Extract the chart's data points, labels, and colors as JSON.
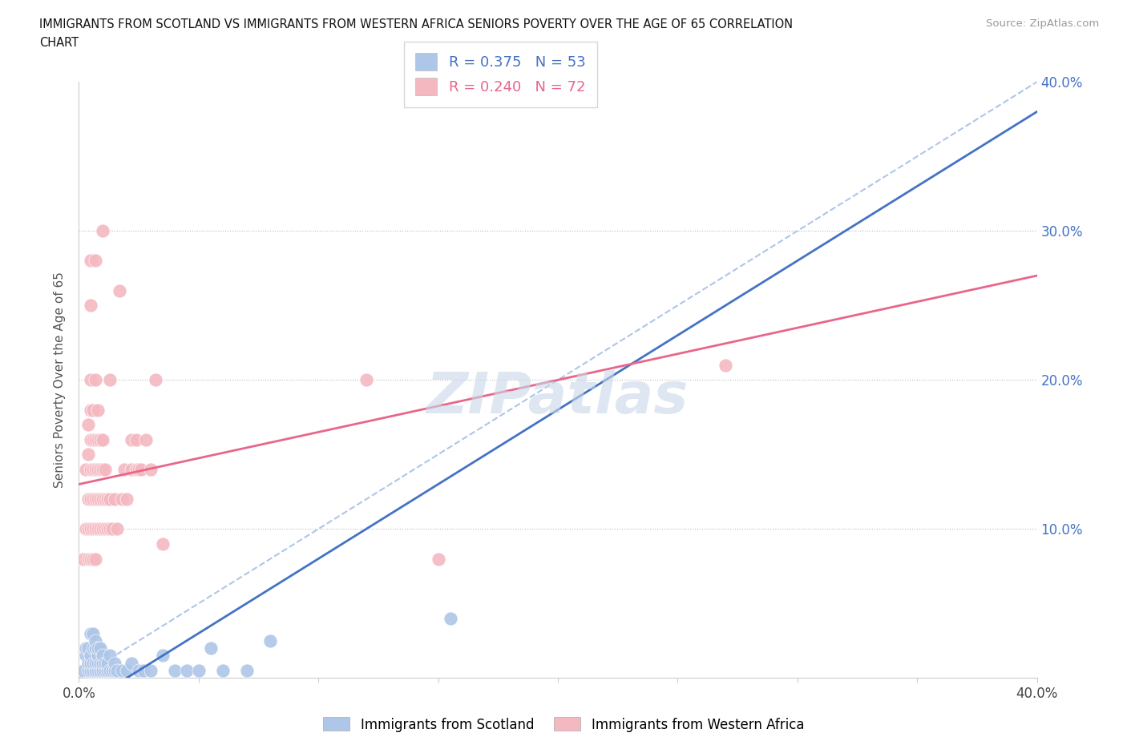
{
  "title_line1": "IMMIGRANTS FROM SCOTLAND VS IMMIGRANTS FROM WESTERN AFRICA SENIORS POVERTY OVER THE AGE OF 65 CORRELATION",
  "title_line2": "CHART",
  "source": "Source: ZipAtlas.com",
  "ylabel": "Seniors Poverty Over the Age of 65",
  "xlim": [
    0.0,
    0.4
  ],
  "ylim": [
    0.0,
    0.4
  ],
  "scotland_R": 0.375,
  "scotland_N": 53,
  "western_africa_R": 0.24,
  "western_africa_N": 72,
  "scotland_color": "#aec6e8",
  "western_africa_color": "#f4b8c1",
  "scotland_line_color": "#4472c4",
  "western_africa_line_color": "#e8668a",
  "dashed_line_color": "#aec6e8",
  "watermark": "ZIPatlas",
  "watermark_color": "#c8d8e8",
  "scotland_points": [
    [
      0.002,
      0.005
    ],
    [
      0.003,
      0.015
    ],
    [
      0.003,
      0.02
    ],
    [
      0.004,
      0.005
    ],
    [
      0.004,
      0.01
    ],
    [
      0.004,
      0.02
    ],
    [
      0.005,
      0.005
    ],
    [
      0.005,
      0.01
    ],
    [
      0.005,
      0.015
    ],
    [
      0.005,
      0.03
    ],
    [
      0.006,
      0.005
    ],
    [
      0.006,
      0.01
    ],
    [
      0.006,
      0.02
    ],
    [
      0.006,
      0.03
    ],
    [
      0.007,
      0.005
    ],
    [
      0.007,
      0.01
    ],
    [
      0.007,
      0.02
    ],
    [
      0.007,
      0.025
    ],
    [
      0.008,
      0.005
    ],
    [
      0.008,
      0.01
    ],
    [
      0.008,
      0.015
    ],
    [
      0.008,
      0.02
    ],
    [
      0.009,
      0.005
    ],
    [
      0.009,
      0.01
    ],
    [
      0.009,
      0.02
    ],
    [
      0.01,
      0.005
    ],
    [
      0.01,
      0.01
    ],
    [
      0.01,
      0.015
    ],
    [
      0.011,
      0.005
    ],
    [
      0.011,
      0.01
    ],
    [
      0.012,
      0.005
    ],
    [
      0.012,
      0.01
    ],
    [
      0.013,
      0.005
    ],
    [
      0.013,
      0.015
    ],
    [
      0.014,
      0.005
    ],
    [
      0.015,
      0.005
    ],
    [
      0.015,
      0.01
    ],
    [
      0.016,
      0.005
    ],
    [
      0.018,
      0.005
    ],
    [
      0.02,
      0.005
    ],
    [
      0.022,
      0.01
    ],
    [
      0.025,
      0.005
    ],
    [
      0.027,
      0.005
    ],
    [
      0.03,
      0.005
    ],
    [
      0.035,
      0.015
    ],
    [
      0.04,
      0.005
    ],
    [
      0.045,
      0.005
    ],
    [
      0.05,
      0.005
    ],
    [
      0.055,
      0.02
    ],
    [
      0.06,
      0.005
    ],
    [
      0.07,
      0.005
    ],
    [
      0.08,
      0.025
    ],
    [
      0.155,
      0.04
    ]
  ],
  "western_africa_points": [
    [
      0.002,
      0.08
    ],
    [
      0.003,
      0.1
    ],
    [
      0.003,
      0.14
    ],
    [
      0.004,
      0.08
    ],
    [
      0.004,
      0.1
    ],
    [
      0.004,
      0.12
    ],
    [
      0.004,
      0.15
    ],
    [
      0.004,
      0.17
    ],
    [
      0.005,
      0.08
    ],
    [
      0.005,
      0.1
    ],
    [
      0.005,
      0.12
    ],
    [
      0.005,
      0.14
    ],
    [
      0.005,
      0.16
    ],
    [
      0.005,
      0.18
    ],
    [
      0.005,
      0.2
    ],
    [
      0.005,
      0.25
    ],
    [
      0.005,
      0.28
    ],
    [
      0.006,
      0.08
    ],
    [
      0.006,
      0.1
    ],
    [
      0.006,
      0.12
    ],
    [
      0.006,
      0.14
    ],
    [
      0.006,
      0.16
    ],
    [
      0.006,
      0.18
    ],
    [
      0.007,
      0.08
    ],
    [
      0.007,
      0.1
    ],
    [
      0.007,
      0.12
    ],
    [
      0.007,
      0.14
    ],
    [
      0.007,
      0.16
    ],
    [
      0.007,
      0.2
    ],
    [
      0.007,
      0.28
    ],
    [
      0.008,
      0.1
    ],
    [
      0.008,
      0.12
    ],
    [
      0.008,
      0.14
    ],
    [
      0.008,
      0.16
    ],
    [
      0.008,
      0.18
    ],
    [
      0.009,
      0.1
    ],
    [
      0.009,
      0.12
    ],
    [
      0.009,
      0.14
    ],
    [
      0.009,
      0.16
    ],
    [
      0.01,
      0.1
    ],
    [
      0.01,
      0.12
    ],
    [
      0.01,
      0.14
    ],
    [
      0.01,
      0.16
    ],
    [
      0.01,
      0.3
    ],
    [
      0.011,
      0.1
    ],
    [
      0.011,
      0.12
    ],
    [
      0.011,
      0.14
    ],
    [
      0.012,
      0.1
    ],
    [
      0.012,
      0.12
    ],
    [
      0.013,
      0.1
    ],
    [
      0.013,
      0.12
    ],
    [
      0.013,
      0.2
    ],
    [
      0.014,
      0.1
    ],
    [
      0.015,
      0.12
    ],
    [
      0.016,
      0.1
    ],
    [
      0.017,
      0.26
    ],
    [
      0.018,
      0.12
    ],
    [
      0.019,
      0.14
    ],
    [
      0.02,
      0.12
    ],
    [
      0.022,
      0.14
    ],
    [
      0.022,
      0.16
    ],
    [
      0.024,
      0.14
    ],
    [
      0.024,
      0.16
    ],
    [
      0.025,
      0.14
    ],
    [
      0.026,
      0.14
    ],
    [
      0.028,
      0.16
    ],
    [
      0.03,
      0.14
    ],
    [
      0.032,
      0.2
    ],
    [
      0.035,
      0.09
    ],
    [
      0.12,
      0.2
    ],
    [
      0.15,
      0.08
    ],
    [
      0.27,
      0.21
    ]
  ]
}
